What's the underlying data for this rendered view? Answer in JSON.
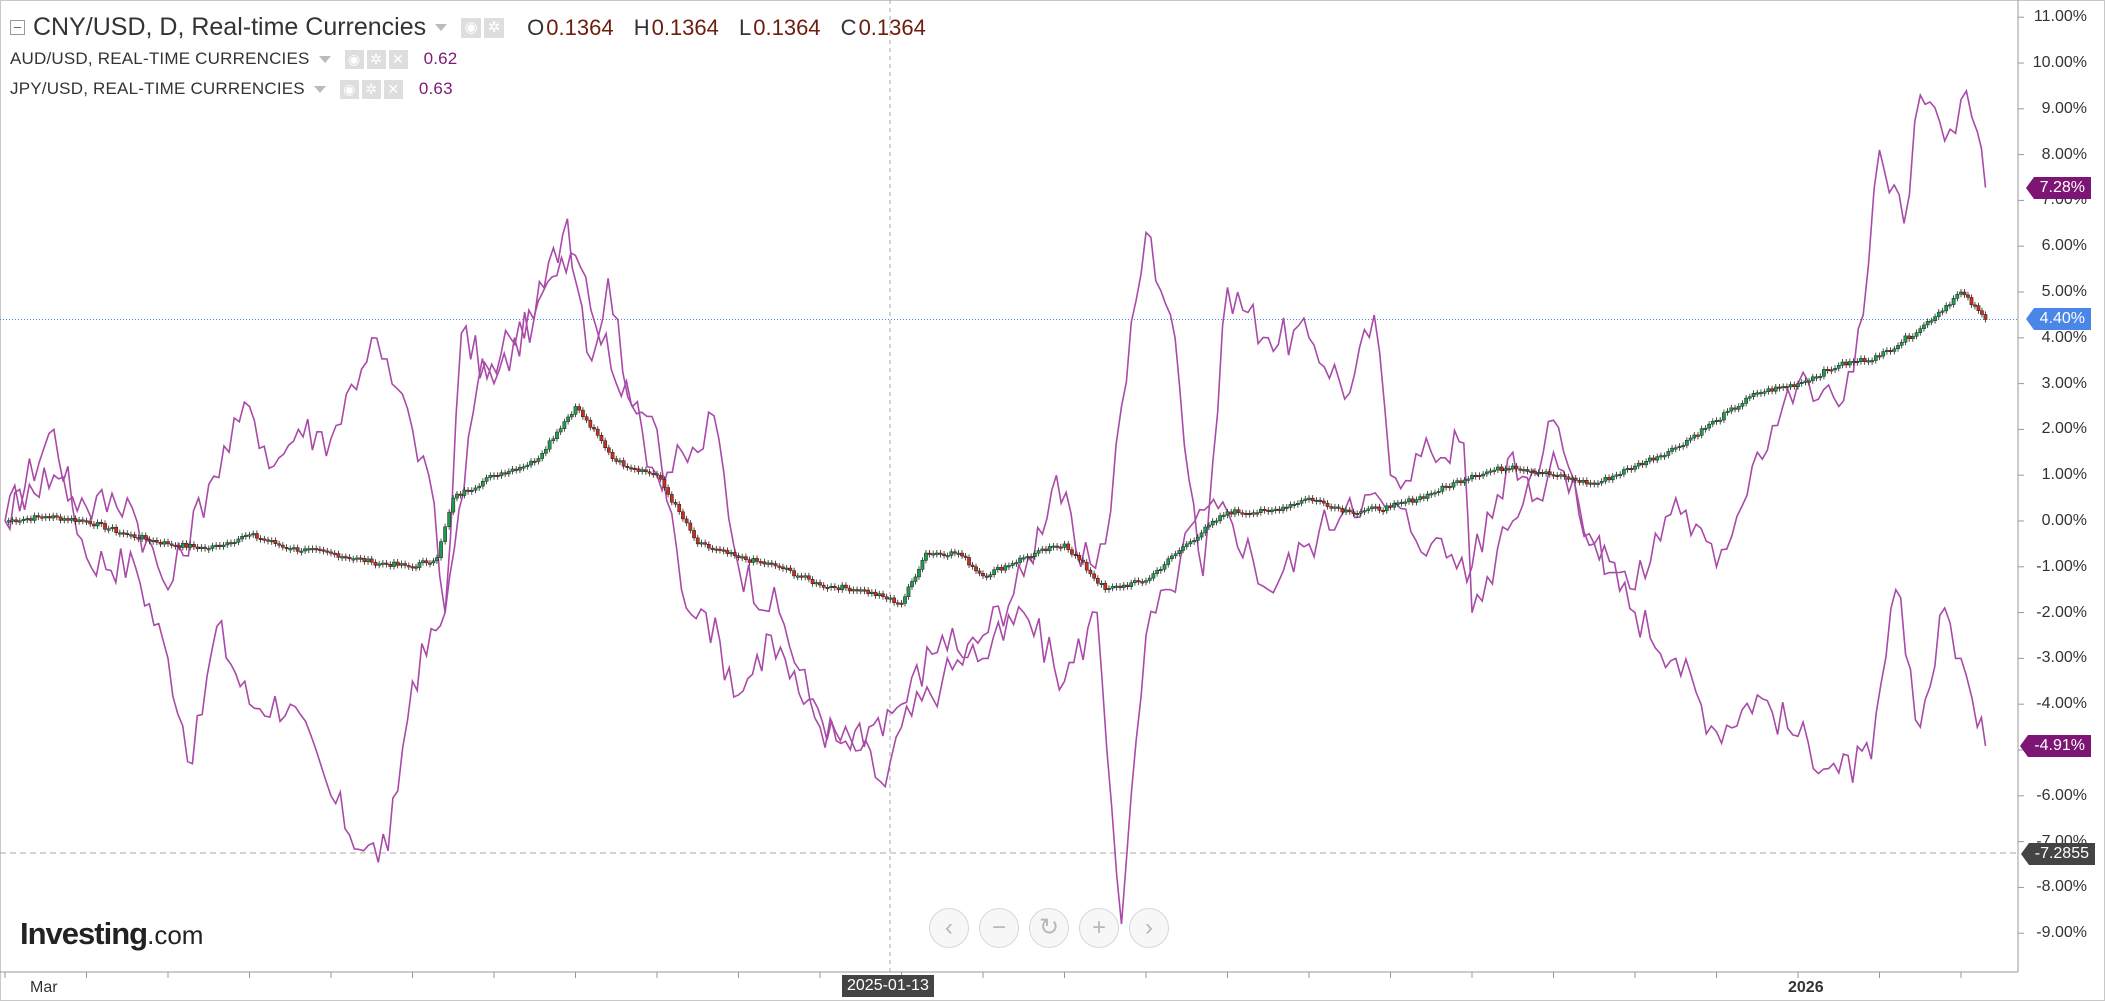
{
  "legend": {
    "main": {
      "title": "CNY/USD, D, Real-time Currencies",
      "ohlc": [
        {
          "key": "O",
          "value": "0.1364"
        },
        {
          "key": "H",
          "value": "0.1364"
        },
        {
          "key": "L",
          "value": "0.1364"
        },
        {
          "key": "C",
          "value": "0.1364"
        }
      ]
    },
    "compare": [
      {
        "title": "AUD/USD, REAL-TIME CURRENCIES",
        "value": "0.62"
      },
      {
        "title": "JPY/USD, REAL-TIME CURRENCIES",
        "value": "0.63"
      }
    ]
  },
  "icons": {
    "collapse": "collapse-icon",
    "visibility": "eye-icon",
    "settings": "gear-icon",
    "remove": "close-icon"
  },
  "price_tags": {
    "jpy": "7.28%",
    "cny": "4.40%",
    "aud": "-4.91%",
    "crosshair": "-7.2855"
  },
  "crosshair_date": "2025-01-13",
  "logo": {
    "brand": "Investing",
    "suffix": ".com"
  },
  "nav": {
    "back": "‹",
    "zoom_out": "−",
    "reset": "↻",
    "zoom_in": "+",
    "forward": "›"
  },
  "colors": {
    "up_candle": "#1d9e4d",
    "down_candle": "#c92f21",
    "compare_line": "#a94aa8",
    "cny_tag": "#4a86e8",
    "compare_tag": "#7d1575",
    "crosshair_tag": "#444444",
    "hline": "#4a86e8"
  },
  "chart_data": {
    "type": "line",
    "title": "CNY/USD, D, Real-time Currencies",
    "y_axis": {
      "unit": "%",
      "ticks": [
        "11.00%",
        "10.00%",
        "9.00%",
        "8.00%",
        "7.00%",
        "6.00%",
        "5.00%",
        "4.00%",
        "3.00%",
        "2.00%",
        "1.00%",
        "0.00%",
        "-1.00%",
        "-2.00%",
        "-3.00%",
        "-4.00%",
        "-5.00%",
        "-6.00%",
        "-7.00%",
        "-8.00%",
        "-9.00%"
      ],
      "range": [
        -9.5,
        11.2
      ]
    },
    "x_axis": {
      "ticks": [
        {
          "label": "Mar",
          "month_index": 0
        },
        {
          "label": "2026",
          "month_index": 22
        }
      ],
      "month_span": [
        -0.2,
        24.4
      ]
    },
    "series": [
      {
        "name": "CNY/USD",
        "style": "candlestick",
        "points": [
          [
            0.0,
            0.0
          ],
          [
            0.5,
            0.1
          ],
          [
            1.0,
            0.0
          ],
          [
            1.5,
            -0.3
          ],
          [
            2.0,
            -0.5
          ],
          [
            2.5,
            -0.6
          ],
          [
            3.0,
            -0.3
          ],
          [
            3.5,
            -0.6
          ],
          [
            4.0,
            -0.7
          ],
          [
            4.5,
            -0.9
          ],
          [
            5.0,
            -1.0
          ],
          [
            5.3,
            -0.8
          ],
          [
            5.5,
            0.5
          ],
          [
            6.0,
            1.0
          ],
          [
            6.5,
            1.3
          ],
          [
            7.0,
            2.5
          ],
          [
            7.5,
            1.3
          ],
          [
            8.0,
            1.0
          ],
          [
            8.5,
            -0.5
          ],
          [
            9.0,
            -0.8
          ],
          [
            9.5,
            -1.0
          ],
          [
            10.0,
            -1.4
          ],
          [
            10.5,
            -1.5
          ],
          [
            11.0,
            -1.8
          ],
          [
            11.3,
            -0.7
          ],
          [
            11.7,
            -0.7
          ],
          [
            12.0,
            -1.2
          ],
          [
            12.5,
            -0.8
          ],
          [
            13.0,
            -0.5
          ],
          [
            13.5,
            -1.5
          ],
          [
            14.0,
            -1.3
          ],
          [
            14.5,
            -0.5
          ],
          [
            15.0,
            0.2
          ],
          [
            15.5,
            0.2
          ],
          [
            16.0,
            0.5
          ],
          [
            16.5,
            0.2
          ],
          [
            17.0,
            0.3
          ],
          [
            17.5,
            0.6
          ],
          [
            18.0,
            1.0
          ],
          [
            18.5,
            1.2
          ],
          [
            19.0,
            1.0
          ],
          [
            19.5,
            0.8
          ],
          [
            20.0,
            1.2
          ],
          [
            20.5,
            1.6
          ],
          [
            21.0,
            2.2
          ],
          [
            21.5,
            2.8
          ],
          [
            22.0,
            3.0
          ],
          [
            22.5,
            3.4
          ],
          [
            23.0,
            3.6
          ],
          [
            23.5,
            4.2
          ],
          [
            24.0,
            5.0
          ],
          [
            24.3,
            4.4
          ]
        ]
      },
      {
        "name": "AUD/USD",
        "style": "line",
        "points": [
          [
            0.0,
            0.0
          ],
          [
            0.6,
            2.0
          ],
          [
            1.0,
            -0.8
          ],
          [
            1.6,
            -1.0
          ],
          [
            2.0,
            -3.0
          ],
          [
            2.3,
            -5.3
          ],
          [
            2.6,
            -2.3
          ],
          [
            3.0,
            -4.0
          ],
          [
            3.5,
            -4.0
          ],
          [
            4.0,
            -6.0
          ],
          [
            4.4,
            -7.2
          ],
          [
            4.7,
            -7.2
          ],
          [
            5.0,
            -3.5
          ],
          [
            5.4,
            -2.0
          ],
          [
            5.6,
            4.1
          ],
          [
            6.0,
            3.0
          ],
          [
            6.5,
            4.5
          ],
          [
            6.9,
            6.6
          ],
          [
            7.2,
            3.5
          ],
          [
            7.4,
            5.3
          ],
          [
            7.7,
            2.5
          ],
          [
            8.0,
            1.0
          ],
          [
            8.5,
            1.5
          ],
          [
            8.7,
            2.3
          ],
          [
            9.0,
            -1.0
          ],
          [
            9.5,
            -2.0
          ],
          [
            10.0,
            -4.5
          ],
          [
            10.5,
            -5.0
          ],
          [
            10.8,
            -5.8
          ],
          [
            11.0,
            -4.5
          ],
          [
            11.5,
            -3.5
          ],
          [
            12.0,
            -2.5
          ],
          [
            12.5,
            -1.2
          ],
          [
            12.9,
            1.0
          ],
          [
            13.2,
            -1.0
          ],
          [
            13.5,
            -0.5
          ],
          [
            13.7,
            2.5
          ],
          [
            14.0,
            6.3
          ],
          [
            14.3,
            4.5
          ],
          [
            14.7,
            -1.2
          ],
          [
            15.0,
            5.1
          ],
          [
            15.5,
            4.0
          ],
          [
            16.0,
            4.0
          ],
          [
            16.5,
            2.8
          ],
          [
            16.8,
            4.5
          ],
          [
            17.0,
            1.0
          ],
          [
            17.5,
            1.5
          ],
          [
            17.9,
            1.7
          ],
          [
            18.0,
            -2.0
          ],
          [
            18.5,
            0.0
          ],
          [
            19.0,
            2.2
          ],
          [
            19.5,
            -0.5
          ],
          [
            20.0,
            -2.0
          ],
          [
            20.5,
            -3.0
          ],
          [
            21.0,
            -4.6
          ],
          [
            21.5,
            -3.8
          ],
          [
            22.0,
            -4.7
          ],
          [
            22.5,
            -5.5
          ],
          [
            22.9,
            -5.2
          ],
          [
            23.2,
            -1.5
          ],
          [
            23.5,
            -4.5
          ],
          [
            23.8,
            -1.9
          ],
          [
            24.0,
            -3.0
          ],
          [
            24.2,
            -4.5
          ],
          [
            24.3,
            -4.91
          ]
        ]
      },
      {
        "name": "JPY/USD",
        "style": "line",
        "points": [
          [
            0.0,
            0.0
          ],
          [
            0.3,
            0.8
          ],
          [
            0.6,
            1.0
          ],
          [
            1.0,
            0.3
          ],
          [
            1.5,
            0.5
          ],
          [
            2.0,
            -1.5
          ],
          [
            2.5,
            0.8
          ],
          [
            3.0,
            2.5
          ],
          [
            3.3,
            1.2
          ],
          [
            3.6,
            2.0
          ],
          [
            4.0,
            1.8
          ],
          [
            4.5,
            4.0
          ],
          [
            5.0,
            2.0
          ],
          [
            5.2,
            1.0
          ],
          [
            5.4,
            -2.0
          ],
          [
            5.8,
            3.0
          ],
          [
            6.2,
            4.0
          ],
          [
            6.6,
            5.0
          ],
          [
            7.0,
            5.8
          ],
          [
            7.5,
            3.0
          ],
          [
            8.0,
            2.0
          ],
          [
            8.3,
            -1.5
          ],
          [
            8.6,
            -2.0
          ],
          [
            9.0,
            -3.8
          ],
          [
            9.4,
            -2.5
          ],
          [
            9.8,
            -4.0
          ],
          [
            10.2,
            -4.8
          ],
          [
            10.6,
            -4.5
          ],
          [
            11.0,
            -4.0
          ],
          [
            11.5,
            -2.5
          ],
          [
            12.0,
            -3.0
          ],
          [
            12.5,
            -2.0
          ],
          [
            13.0,
            -3.5
          ],
          [
            13.4,
            -2.0
          ],
          [
            13.7,
            -8.8
          ],
          [
            14.0,
            -2.5
          ],
          [
            14.3,
            -1.5
          ],
          [
            14.6,
            0.0
          ],
          [
            15.0,
            0.2
          ],
          [
            15.5,
            -1.5
          ],
          [
            16.0,
            -0.5
          ],
          [
            16.5,
            0.5
          ],
          [
            17.0,
            0.3
          ],
          [
            17.5,
            -0.5
          ],
          [
            18.0,
            -1.0
          ],
          [
            18.5,
            1.5
          ],
          [
            18.8,
            0.5
          ],
          [
            19.0,
            1.5
          ],
          [
            19.5,
            -0.5
          ],
          [
            20.0,
            -1.5
          ],
          [
            20.5,
            0.5
          ],
          [
            21.0,
            -1.0
          ],
          [
            21.5,
            1.5
          ],
          [
            22.0,
            3.0
          ],
          [
            22.5,
            2.5
          ],
          [
            22.8,
            4.5
          ],
          [
            23.0,
            8.1
          ],
          [
            23.3,
            6.5
          ],
          [
            23.5,
            9.3
          ],
          [
            23.8,
            8.3
          ],
          [
            24.0,
            9.2
          ],
          [
            24.2,
            8.5
          ],
          [
            24.3,
            7.28
          ]
        ]
      }
    ],
    "grid": false,
    "legend_position": "top-left"
  }
}
